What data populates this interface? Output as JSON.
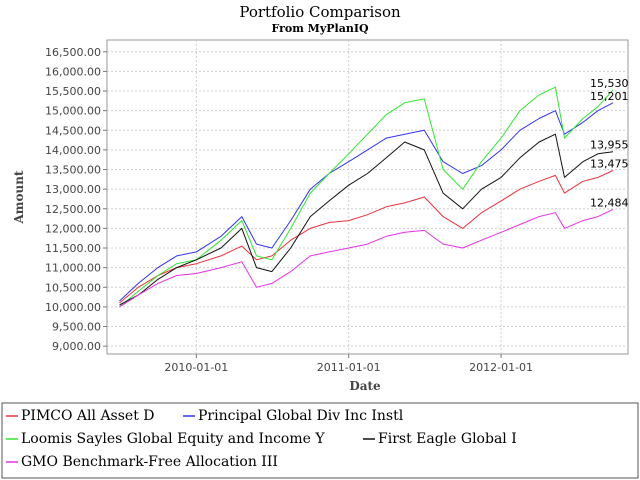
{
  "chart_data": {
    "type": "line",
    "title": "Portfolio Comparison",
    "subtitle": "From MyPlanIQ",
    "xlabel": "Date",
    "ylabel": "Amount",
    "xlim": [
      "2009-06-01",
      "2012-10-31"
    ],
    "ylim": [
      8800,
      16800
    ],
    "y_ticks": [
      9000,
      9500,
      10000,
      10500,
      11000,
      11500,
      12000,
      12500,
      13000,
      13500,
      14000,
      14500,
      15000,
      15500,
      16000,
      16500
    ],
    "y_tick_labels": [
      "9,000.00",
      "9,500.00",
      "10,000.00",
      "10,500.00",
      "11,000.00",
      "11,500.00",
      "12,000.00",
      "12,500.00",
      "13,000.00",
      "13,500.00",
      "14,000.00",
      "14,500.00",
      "15,000.00",
      "15,500.00",
      "16,000.00",
      "16,500.00"
    ],
    "x_ticks": [
      "2010-01-01",
      "2011-01-01",
      "2012-01-01"
    ],
    "x_tick_labels": [
      "2010-01-01",
      "2011-01-01",
      "2012-01-01"
    ],
    "grid": true,
    "legend_position": "bottom",
    "series": [
      {
        "name": "PIMCO All Asset D",
        "color": "#e8323c",
        "end_label": "13,475",
        "points": [
          [
            "2009-07-01",
            10100
          ],
          [
            "2009-08-15",
            10500
          ],
          [
            "2009-10-01",
            10800
          ],
          [
            "2009-11-15",
            11000
          ],
          [
            "2010-01-01",
            11100
          ],
          [
            "2010-03-01",
            11300
          ],
          [
            "2010-04-20",
            11550
          ],
          [
            "2010-05-25",
            11200
          ],
          [
            "2010-07-01",
            11300
          ],
          [
            "2010-08-15",
            11700
          ],
          [
            "2010-10-01",
            12000
          ],
          [
            "2010-11-15",
            12150
          ],
          [
            "2011-01-01",
            12200
          ],
          [
            "2011-02-15",
            12350
          ],
          [
            "2011-04-01",
            12550
          ],
          [
            "2011-05-15",
            12650
          ],
          [
            "2011-07-01",
            12800
          ],
          [
            "2011-08-15",
            12300
          ],
          [
            "2011-10-01",
            12000
          ],
          [
            "2011-11-15",
            12400
          ],
          [
            "2012-01-01",
            12700
          ],
          [
            "2012-02-15",
            13000
          ],
          [
            "2012-04-01",
            13200
          ],
          [
            "2012-05-10",
            13350
          ],
          [
            "2012-06-01",
            12900
          ],
          [
            "2012-07-15",
            13200
          ],
          [
            "2012-08-20",
            13300
          ],
          [
            "2012-09-25",
            13475
          ]
        ]
      },
      {
        "name": "Principal Global Div Inc Instl",
        "color": "#3232f0",
        "end_label": "15,201",
        "points": [
          [
            "2009-07-01",
            10150
          ],
          [
            "2009-08-15",
            10600
          ],
          [
            "2009-10-01",
            11000
          ],
          [
            "2009-11-15",
            11300
          ],
          [
            "2010-01-01",
            11400
          ],
          [
            "2010-03-01",
            11800
          ],
          [
            "2010-04-20",
            12300
          ],
          [
            "2010-05-25",
            11600
          ],
          [
            "2010-07-01",
            11500
          ],
          [
            "2010-08-15",
            12200
          ],
          [
            "2010-10-01",
            13000
          ],
          [
            "2010-11-15",
            13400
          ],
          [
            "2011-01-01",
            13700
          ],
          [
            "2011-02-15",
            14000
          ],
          [
            "2011-04-01",
            14300
          ],
          [
            "2011-05-15",
            14400
          ],
          [
            "2011-07-01",
            14500
          ],
          [
            "2011-08-15",
            13700
          ],
          [
            "2011-10-01",
            13400
          ],
          [
            "2011-11-15",
            13600
          ],
          [
            "2012-01-01",
            14000
          ],
          [
            "2012-02-15",
            14500
          ],
          [
            "2012-04-01",
            14800
          ],
          [
            "2012-05-10",
            15000
          ],
          [
            "2012-06-01",
            14400
          ],
          [
            "2012-07-15",
            14700
          ],
          [
            "2012-08-20",
            15000
          ],
          [
            "2012-09-25",
            15201
          ]
        ]
      },
      {
        "name": "Loomis Sayles Global Equity and Income Y",
        "color": "#32e632",
        "end_label": "15,530",
        "points": [
          [
            "2009-07-01",
            10000
          ],
          [
            "2009-08-15",
            10400
          ],
          [
            "2009-10-01",
            10800
          ],
          [
            "2009-11-15",
            11100
          ],
          [
            "2010-01-01",
            11200
          ],
          [
            "2010-03-01",
            11700
          ],
          [
            "2010-04-20",
            12200
          ],
          [
            "2010-05-25",
            11300
          ],
          [
            "2010-07-01",
            11200
          ],
          [
            "2010-08-15",
            12000
          ],
          [
            "2010-10-01",
            12900
          ],
          [
            "2010-11-15",
            13400
          ],
          [
            "2011-01-01",
            13900
          ],
          [
            "2011-02-15",
            14400
          ],
          [
            "2011-04-01",
            14900
          ],
          [
            "2011-05-15",
            15200
          ],
          [
            "2011-07-01",
            15300
          ],
          [
            "2011-08-15",
            13500
          ],
          [
            "2011-10-01",
            13000
          ],
          [
            "2011-11-15",
            13700
          ],
          [
            "2012-01-01",
            14300
          ],
          [
            "2012-02-15",
            15000
          ],
          [
            "2012-04-01",
            15400
          ],
          [
            "2012-05-10",
            15600
          ],
          [
            "2012-06-01",
            14300
          ],
          [
            "2012-07-15",
            14800
          ],
          [
            "2012-08-20",
            15100
          ],
          [
            "2012-09-25",
            15530
          ]
        ]
      },
      {
        "name": "First Eagle Global I",
        "color": "#111111",
        "end_label": "13,955",
        "points": [
          [
            "2009-07-01",
            10050
          ],
          [
            "2009-08-15",
            10300
          ],
          [
            "2009-10-01",
            10700
          ],
          [
            "2009-11-15",
            11000
          ],
          [
            "2010-01-01",
            11200
          ],
          [
            "2010-03-01",
            11500
          ],
          [
            "2010-04-20",
            12000
          ],
          [
            "2010-05-25",
            11000
          ],
          [
            "2010-07-01",
            10900
          ],
          [
            "2010-08-15",
            11500
          ],
          [
            "2010-10-01",
            12300
          ],
          [
            "2010-11-15",
            12700
          ],
          [
            "2011-01-01",
            13100
          ],
          [
            "2011-02-15",
            13400
          ],
          [
            "2011-04-01",
            13800
          ],
          [
            "2011-05-15",
            14200
          ],
          [
            "2011-07-01",
            14000
          ],
          [
            "2011-08-15",
            12900
          ],
          [
            "2011-10-01",
            12500
          ],
          [
            "2011-11-15",
            13000
          ],
          [
            "2012-01-01",
            13300
          ],
          [
            "2012-02-15",
            13800
          ],
          [
            "2012-04-01",
            14200
          ],
          [
            "2012-05-10",
            14400
          ],
          [
            "2012-06-01",
            13300
          ],
          [
            "2012-07-15",
            13700
          ],
          [
            "2012-08-20",
            13900
          ],
          [
            "2012-09-25",
            13955
          ]
        ]
      },
      {
        "name": "GMO Benchmark-Free Allocation III",
        "color": "#e632e6",
        "end_label": "12,484",
        "points": [
          [
            "2009-07-01",
            10000
          ],
          [
            "2009-08-15",
            10300
          ],
          [
            "2009-10-01",
            10600
          ],
          [
            "2009-11-15",
            10800
          ],
          [
            "2010-01-01",
            10850
          ],
          [
            "2010-03-01",
            11000
          ],
          [
            "2010-04-20",
            11150
          ],
          [
            "2010-05-25",
            10500
          ],
          [
            "2010-07-01",
            10600
          ],
          [
            "2010-08-15",
            10900
          ],
          [
            "2010-10-01",
            11300
          ],
          [
            "2010-11-15",
            11400
          ],
          [
            "2011-01-01",
            11500
          ],
          [
            "2011-02-15",
            11600
          ],
          [
            "2011-04-01",
            11800
          ],
          [
            "2011-05-15",
            11900
          ],
          [
            "2011-07-01",
            11950
          ],
          [
            "2011-08-15",
            11600
          ],
          [
            "2011-10-01",
            11500
          ],
          [
            "2011-11-15",
            11700
          ],
          [
            "2012-01-01",
            11900
          ],
          [
            "2012-02-15",
            12100
          ],
          [
            "2012-04-01",
            12300
          ],
          [
            "2012-05-10",
            12400
          ],
          [
            "2012-06-01",
            12000
          ],
          [
            "2012-07-15",
            12200
          ],
          [
            "2012-08-20",
            12300
          ],
          [
            "2012-09-25",
            12484
          ]
        ]
      }
    ]
  }
}
